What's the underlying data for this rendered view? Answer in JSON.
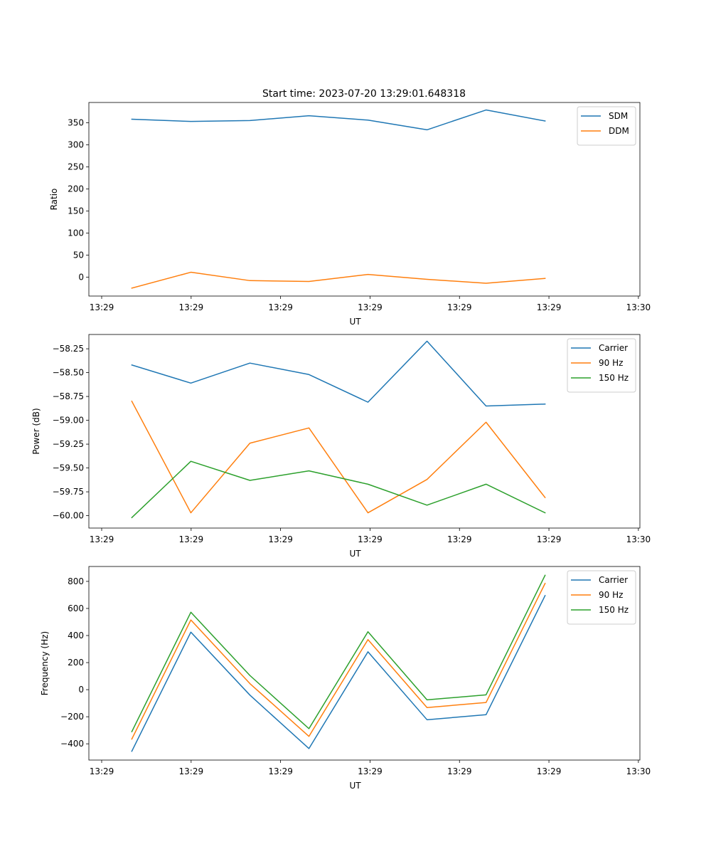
{
  "title": "Start time: 2023-07-20 13:29:01.648318",
  "colors": {
    "c0": "#1f77b4",
    "c1": "#ff7f0e",
    "c2": "#2ca02c"
  },
  "chart_data": [
    {
      "type": "line",
      "xlabel": "UT",
      "ylabel": "Ratio",
      "xticks": [
        "13:29",
        "13:29",
        "13:29",
        "13:29",
        "13:29",
        "13:29",
        "13:30"
      ],
      "xlim": [
        -0.48,
        5.68
      ],
      "x": [
        0.0,
        0.66,
        1.32,
        1.98,
        2.64,
        3.3,
        3.96,
        4.62
      ],
      "yticks": [
        0,
        50,
        100,
        150,
        200,
        250,
        300,
        350
      ],
      "ylim": [
        -43,
        396
      ],
      "legend": "top-right",
      "series": [
        {
          "name": "SDM",
          "color": "#1f77b4",
          "values": [
            358,
            353,
            355,
            366,
            356,
            334,
            379,
            354
          ]
        },
        {
          "name": "DDM",
          "color": "#ff7f0e",
          "values": [
            -25,
            11,
            -8,
            -10,
            6,
            -5,
            -14,
            -3
          ]
        }
      ]
    },
    {
      "type": "line",
      "xlabel": "UT",
      "ylabel": "Power (dB)",
      "xticks": [
        "13:29",
        "13:29",
        "13:29",
        "13:29",
        "13:29",
        "13:29",
        "13:30"
      ],
      "xlim": [
        -0.48,
        5.68
      ],
      "x": [
        0.0,
        0.66,
        1.32,
        1.98,
        2.64,
        3.3,
        3.96,
        4.62
      ],
      "yticks": [
        -60.0,
        -59.75,
        -59.5,
        -59.25,
        -59.0,
        -58.75,
        -58.5,
        -58.25
      ],
      "ytick_labels": [
        "−60.00",
        "−59.75",
        "−59.50",
        "−59.25",
        "−59.00",
        "−58.75",
        "−58.50",
        "−58.25"
      ],
      "ylim": [
        -60.13,
        -58.1
      ],
      "legend": "top-right",
      "series": [
        {
          "name": "Carrier",
          "color": "#1f77b4",
          "values": [
            -58.42,
            -58.61,
            -58.4,
            -58.52,
            -58.81,
            -58.17,
            -58.85,
            -58.83
          ]
        },
        {
          "name": "90 Hz",
          "color": "#ff7f0e",
          "values": [
            -58.8,
            -59.97,
            -59.24,
            -59.08,
            -59.97,
            -59.62,
            -59.02,
            -59.81
          ]
        },
        {
          "name": "150 Hz",
          "color": "#2ca02c",
          "values": [
            -60.02,
            -59.43,
            -59.63,
            -59.53,
            -59.67,
            -59.89,
            -59.67,
            -59.97
          ]
        }
      ]
    },
    {
      "type": "line",
      "xlabel": "UT",
      "ylabel": "Frequency (Hz)",
      "xticks": [
        "13:29",
        "13:29",
        "13:29",
        "13:29",
        "13:29",
        "13:29",
        "13:30"
      ],
      "xlim": [
        -0.48,
        5.68
      ],
      "x": [
        0.0,
        0.66,
        1.32,
        1.98,
        2.64,
        3.3,
        3.96,
        4.62
      ],
      "yticks": [
        -400,
        -200,
        0,
        200,
        400,
        600,
        800
      ],
      "ytick_labels": [
        "−400",
        "−200",
        "0",
        "200",
        "400",
        "600",
        "800"
      ],
      "ylim": [
        -520,
        910
      ],
      "legend": "top-right",
      "series": [
        {
          "name": "Carrier",
          "color": "#1f77b4",
          "values": [
            -455,
            425,
            -40,
            -435,
            280,
            -222,
            -185,
            695
          ]
        },
        {
          "name": "90 Hz",
          "color": "#ff7f0e",
          "values": [
            -365,
            515,
            45,
            -345,
            370,
            -132,
            -95,
            785
          ]
        },
        {
          "name": "150 Hz",
          "color": "#2ca02c",
          "values": [
            -310,
            572,
            105,
            -288,
            428,
            -75,
            -38,
            845
          ]
        }
      ]
    }
  ]
}
